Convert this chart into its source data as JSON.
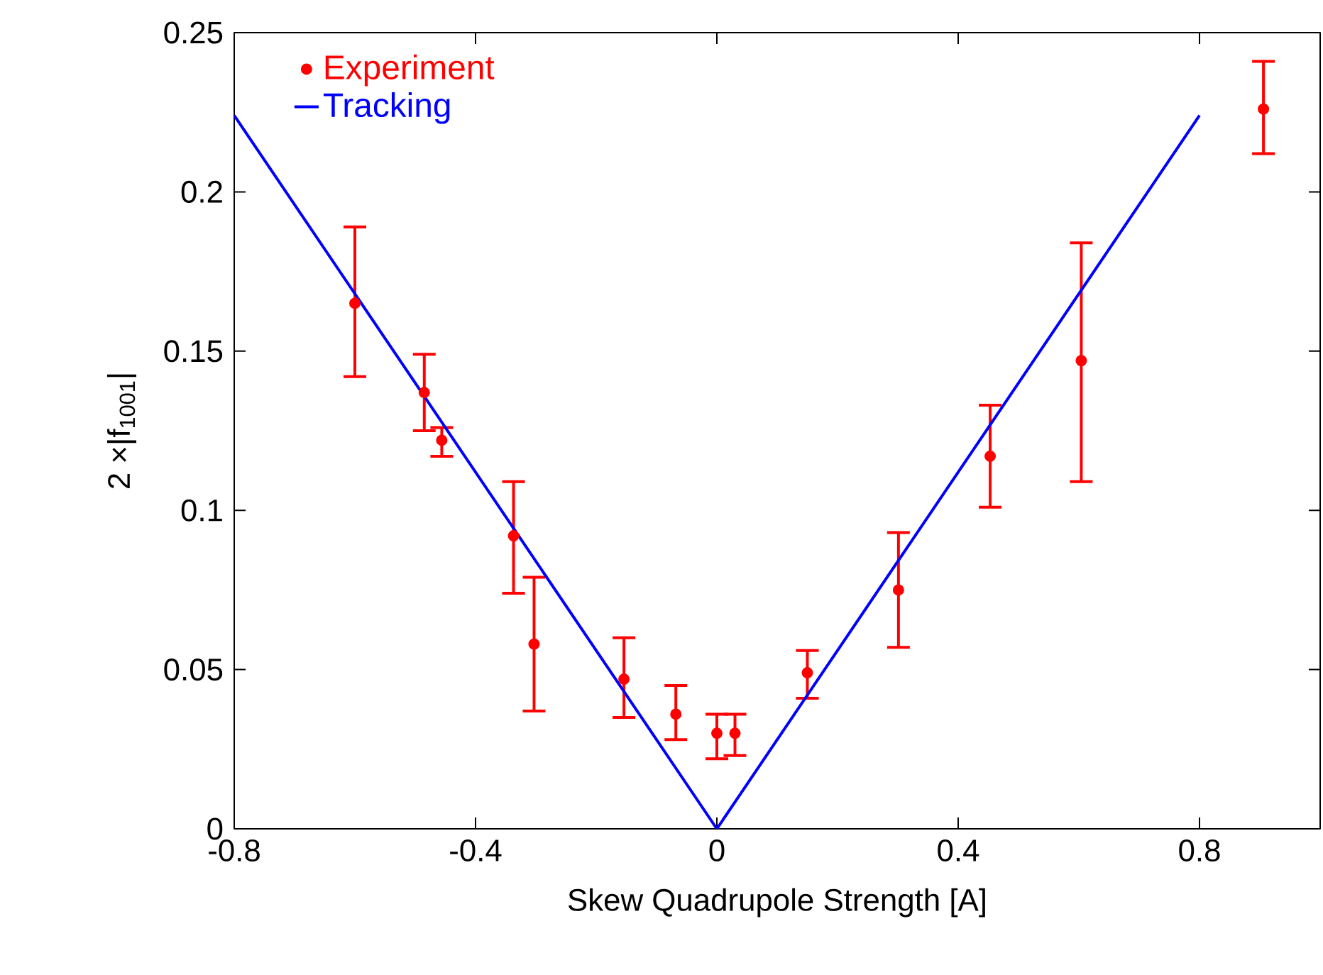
{
  "chart_data": {
    "type": "scatter",
    "xlabel": "Skew Quadrupole Strength [A]",
    "ylabel": "2 ×|f$_{1001}$|",
    "xlim": [
      -0.8,
      1.0
    ],
    "xticks": [
      -0.8,
      -0.4,
      0,
      0.4,
      0.8
    ],
    "ylim": [
      0,
      0.25
    ],
    "yticks": [
      0,
      0.05,
      0.1,
      0.15,
      0.2,
      0.25
    ],
    "grid": false,
    "legend": "top left",
    "series": [
      {
        "name": "Experiment",
        "marker": "circle",
        "color": "#ff0000",
        "x": [
          -0.6,
          -0.485,
          -0.456,
          -0.337,
          -0.303,
          -0.154,
          -0.068,
          0.0,
          0.03,
          0.15,
          0.301,
          0.453,
          0.604,
          0.906
        ],
        "values": [
          0.165,
          0.137,
          0.122,
          0.092,
          0.058,
          0.047,
          0.036,
          0.03,
          0.03,
          0.049,
          0.075,
          0.117,
          0.147,
          0.226
        ],
        "errors": [
          [
            0.142,
            0.189
          ],
          [
            0.125,
            0.149
          ],
          [
            0.117,
            0.126
          ],
          [
            0.074,
            0.109
          ],
          [
            0.037,
            0.079
          ],
          [
            0.035,
            0.06
          ],
          [
            0.028,
            0.045
          ],
          [
            0.022,
            0.036
          ],
          [
            0.023,
            0.036
          ],
          [
            0.041,
            0.056
          ],
          [
            0.057,
            0.093
          ],
          [
            0.101,
            0.133
          ],
          [
            0.109,
            0.184
          ],
          [
            0.212,
            0.241
          ]
        ]
      },
      {
        "name": "Tracking",
        "type": "line",
        "color": "#0000ff",
        "x": [
          -0.8,
          0,
          0.8
        ],
        "values": [
          0.224,
          0,
          0.224
        ]
      }
    ]
  }
}
